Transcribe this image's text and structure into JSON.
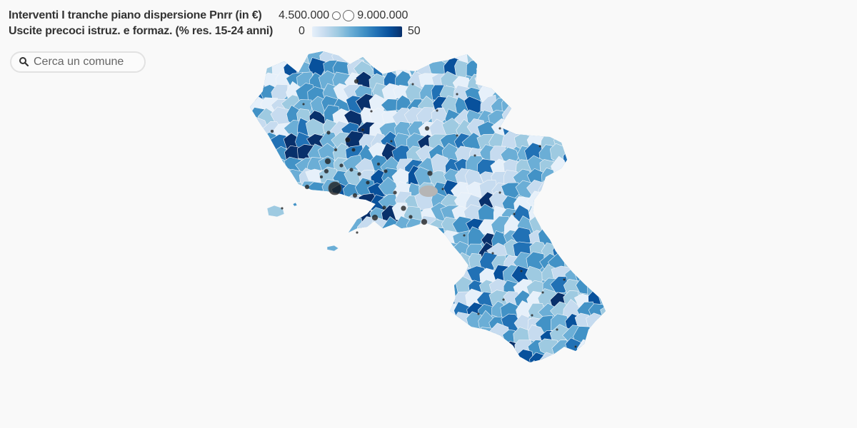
{
  "legend": {
    "bubble_title": "Interventi I tranche piano dispersione Pnrr (in €)",
    "bubble_min": "4.500.000",
    "bubble_max": "9.000.000",
    "color_title": "Uscite precoci istruz. e formaz. (% res. 15-24 anni)",
    "color_min": "0",
    "color_max": "50"
  },
  "colors": {
    "ramp": [
      "#e6f0fa",
      "#c6dbef",
      "#9ecae1",
      "#6baed6",
      "#4292c6",
      "#2171b5",
      "#08519c",
      "#08306b"
    ],
    "no_data": "#b5b5b5",
    "bubble_fill": "#1e1e1e",
    "boundary": "#f4f6f9"
  },
  "search": {
    "placeholder": "Cerca un comune",
    "icon": "magnifier-icon"
  }
}
